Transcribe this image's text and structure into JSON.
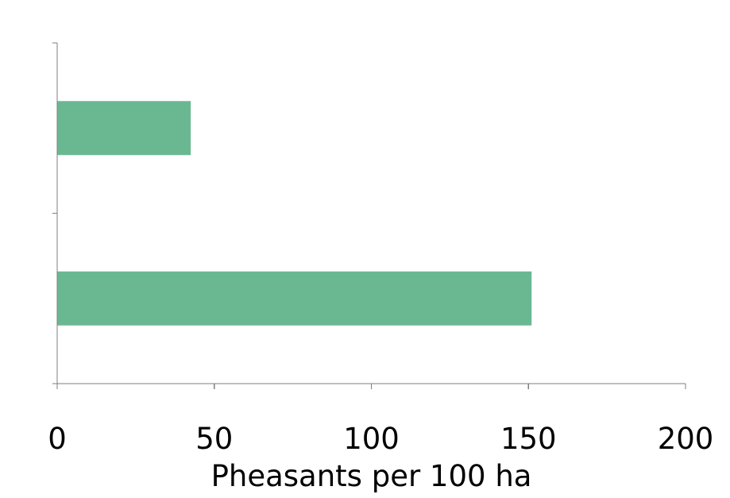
{
  "chart_data": {
    "type": "bar",
    "orientation": "horizontal",
    "categories": [
      "",
      ""
    ],
    "values": [
      42.5,
      151
    ],
    "xlabel": "Pheasants per 100 ha",
    "ylabel": "",
    "xlim": [
      0,
      200
    ],
    "x_ticks": [
      "0",
      "50",
      "100",
      "150",
      "200"
    ],
    "grid": false,
    "legend": "none",
    "bar_color": "#69b891",
    "axis_color": "#7f7f7f"
  }
}
